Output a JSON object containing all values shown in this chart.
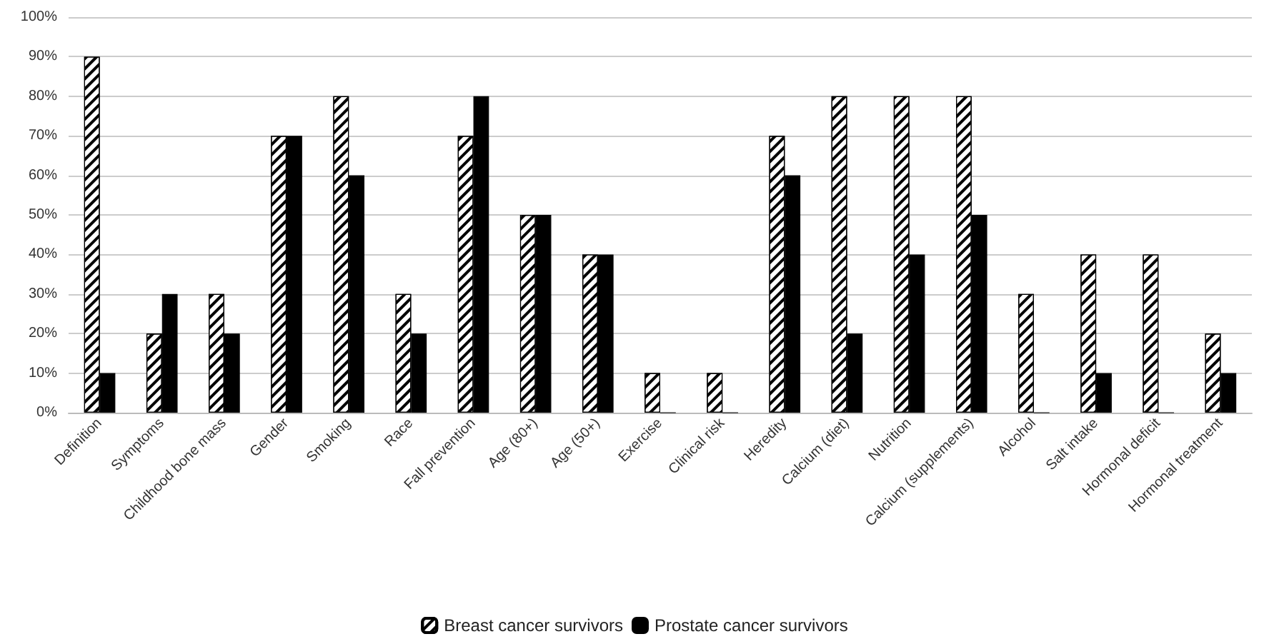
{
  "chart_data": {
    "type": "bar",
    "categories": [
      "Definition",
      "Symptoms",
      "Childhood bone mass",
      "Gender",
      "Smoking",
      "Race",
      "Fall prevention",
      "Age (80+)",
      "Age (50+)",
      "Exercise",
      "Clinical risk",
      "Heredity",
      "Calcium (diet)",
      "Nutrition",
      "Calcium (supplements)",
      "Alcohol",
      "Salt intake",
      "Hormonal deficit",
      "Hormonal treatment"
    ],
    "series": [
      {
        "name": "Breast cancer survivors",
        "color": "#ffffff",
        "values": [
          90,
          20,
          30,
          70,
          80,
          30,
          70,
          50,
          40,
          10,
          10,
          70,
          80,
          80,
          80,
          30,
          40,
          40,
          20
        ]
      },
      {
        "name": "Prostate cancer survivors",
        "color": "#000000",
        "values": [
          10,
          30,
          20,
          70,
          60,
          20,
          80,
          50,
          40,
          0,
          0,
          60,
          20,
          40,
          50,
          0,
          10,
          0,
          10
        ]
      }
    ],
    "ylim": [
      0,
      100
    ],
    "yticks": [
      {
        "value": 0,
        "label": "0%"
      },
      {
        "value": 10,
        "label": "10%"
      },
      {
        "value": 20,
        "label": "20%"
      },
      {
        "value": 30,
        "label": "30%"
      },
      {
        "value": 40,
        "label": "40%"
      },
      {
        "value": 50,
        "label": "50%"
      },
      {
        "value": 60,
        "label": "60%"
      },
      {
        "value": 70,
        "label": "70%"
      },
      {
        "value": 80,
        "label": "80%"
      },
      {
        "value": 90,
        "label": "90%"
      },
      {
        "value": 100,
        "label": "100%"
      }
    ],
    "grid": "y",
    "legend": "bottom"
  }
}
